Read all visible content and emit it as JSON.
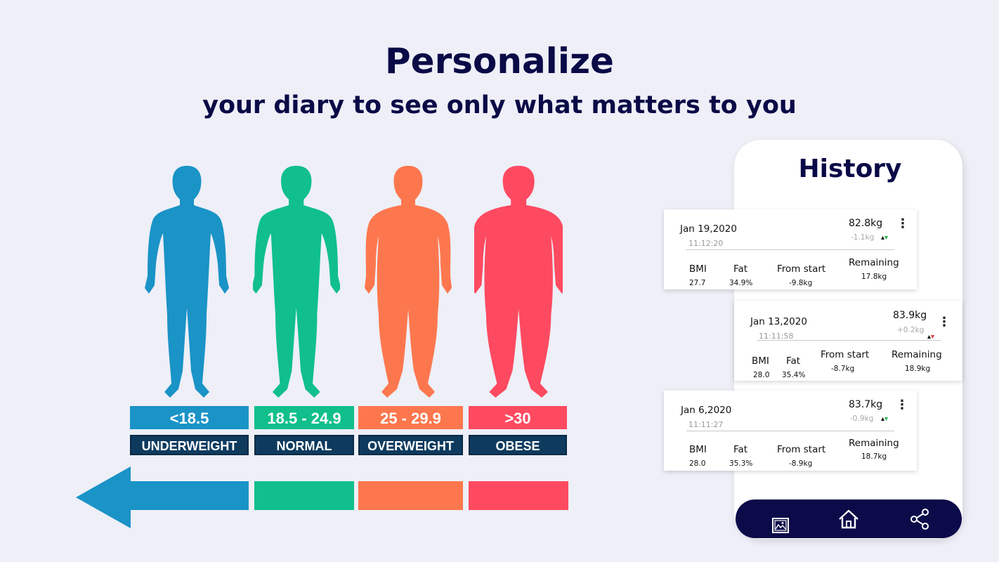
{
  "header": {
    "title": "Personalize",
    "subtitle": "your diary to see only what matters to you"
  },
  "bmi_categories": [
    {
      "range": "<18.5",
      "name": "UNDERWEIGHT",
      "color": "#1a93c7"
    },
    {
      "range": "18.5 - 24.9",
      "name": "NORMAL",
      "color": "#10bf8c"
    },
    {
      "range": "25 - 29.9",
      "name": "OVERWEIGHT",
      "color": "#fd774e"
    },
    {
      "range": ">30",
      "name": "OBESE",
      "color": "#fe4a60"
    }
  ],
  "phone": {
    "title": "History",
    "entries": [
      {
        "date": "Jan 19,2020",
        "time": "11:12:20",
        "weight": "82.8kg",
        "delta": "-1.1kg",
        "labels": {
          "bmi": "BMI",
          "fat": "Fat",
          "from_start": "From start",
          "remaining": "Remaining"
        },
        "values": {
          "bmi": "27.7",
          "fat": "34.9%",
          "from_start": "-9.8kg",
          "remaining": "17.8kg"
        }
      },
      {
        "date": "Jan 13,2020",
        "time": "11:11:58",
        "weight": "83.9kg",
        "delta": "+0.2kg",
        "labels": {
          "bmi": "BMI",
          "fat": "Fat",
          "from_start": "From start",
          "remaining": "Remaining"
        },
        "values": {
          "bmi": "28.0",
          "fat": "35.4%",
          "from_start": "-8.7kg",
          "remaining": "18.9kg"
        }
      },
      {
        "date": "Jan 6,2020",
        "time": "11:11:27",
        "weight": "83.7kg",
        "delta": "-0.9kg",
        "labels": {
          "bmi": "BMI",
          "fat": "Fat",
          "from_start": "From start",
          "remaining": "Remaining"
        },
        "values": {
          "bmi": "28.0",
          "fat": "35.3%",
          "from_start": "-8.9kg",
          "remaining": "18.7kg"
        }
      }
    ],
    "nav": [
      {
        "icon": "image-icon"
      },
      {
        "icon": "home-icon"
      },
      {
        "icon": "share-icon"
      }
    ]
  },
  "colors": {
    "navy": "#0a0a47",
    "background": "#eeeff7",
    "label_bg": "#0e3a5e"
  }
}
